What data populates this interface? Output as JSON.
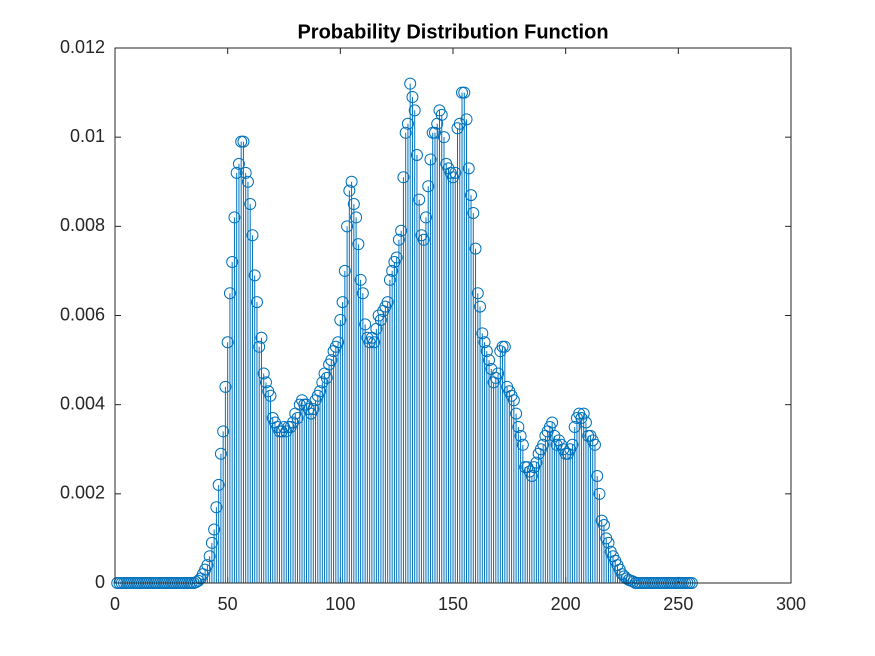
{
  "chart_data": {
    "type": "stem",
    "title": "Probability Distribution Function",
    "x": [
      1,
      2,
      3,
      4,
      5,
      6,
      7,
      8,
      9,
      10,
      11,
      12,
      13,
      14,
      15,
      16,
      17,
      18,
      19,
      20,
      21,
      22,
      23,
      24,
      25,
      26,
      27,
      28,
      29,
      30,
      31,
      32,
      33,
      34,
      35,
      36,
      37,
      38,
      39,
      40,
      41,
      42,
      43,
      44,
      45,
      46,
      47,
      48,
      49,
      50,
      51,
      52,
      53,
      54,
      55,
      56,
      57,
      58,
      59,
      60,
      61,
      62,
      63,
      64,
      65,
      66,
      67,
      68,
      69,
      70,
      71,
      72,
      73,
      74,
      75,
      76,
      77,
      78,
      79,
      80,
      81,
      82,
      83,
      84,
      85,
      86,
      87,
      88,
      89,
      90,
      91,
      92,
      93,
      94,
      95,
      96,
      97,
      98,
      99,
      100,
      101,
      102,
      103,
      104,
      105,
      106,
      107,
      108,
      109,
      110,
      111,
      112,
      113,
      114,
      115,
      116,
      117,
      118,
      119,
      120,
      121,
      122,
      123,
      124,
      125,
      126,
      127,
      128,
      129,
      130,
      131,
      132,
      133,
      134,
      135,
      136,
      137,
      138,
      139,
      140,
      141,
      142,
      143,
      144,
      145,
      146,
      147,
      148,
      149,
      150,
      151,
      152,
      153,
      154,
      155,
      156,
      157,
      158,
      159,
      160,
      161,
      162,
      163,
      164,
      165,
      166,
      167,
      168,
      169,
      170,
      171,
      172,
      173,
      174,
      175,
      176,
      177,
      178,
      179,
      180,
      181,
      182,
      183,
      184,
      185,
      186,
      187,
      188,
      189,
      190,
      191,
      192,
      193,
      194,
      195,
      196,
      197,
      198,
      199,
      200,
      201,
      202,
      203,
      204,
      205,
      206,
      207,
      208,
      209,
      210,
      211,
      212,
      213,
      214,
      215,
      216,
      217,
      218,
      219,
      220,
      221,
      222,
      223,
      224,
      225,
      226,
      227,
      228,
      229,
      230,
      231,
      232,
      233,
      234,
      235,
      236,
      237,
      238,
      239,
      240,
      241,
      242,
      243,
      244,
      245,
      246,
      247,
      248,
      249,
      250,
      251,
      252,
      253,
      254,
      255,
      256
    ],
    "values": [
      0,
      0,
      0,
      0,
      0,
      0,
      0,
      0,
      0,
      0,
      0,
      0,
      0,
      0,
      0,
      0,
      0,
      0,
      0,
      0,
      0,
      0,
      0,
      0,
      0,
      0,
      0,
      0,
      0,
      0,
      0,
      0,
      0,
      0,
      0,
      2e-05,
      5e-05,
      0.0001,
      0.0002,
      0.0003,
      0.0004,
      0.0006,
      0.0009,
      0.0012,
      0.0017,
      0.0022,
      0.0029,
      0.0034,
      0.0044,
      0.0054,
      0.0065,
      0.0072,
      0.0082,
      0.0092,
      0.0094,
      0.0099,
      0.0099,
      0.0092,
      0.009,
      0.0085,
      0.0078,
      0.0069,
      0.0063,
      0.0053,
      0.0055,
      0.0047,
      0.0045,
      0.0043,
      0.0042,
      0.0037,
      0.0036,
      0.0035,
      0.0034,
      0.0034,
      0.0035,
      0.0034,
      0.0035,
      0.0035,
      0.0036,
      0.0038,
      0.0037,
      0.004,
      0.0041,
      0.004,
      0.004,
      0.0039,
      0.0038,
      0.0039,
      0.0041,
      0.0042,
      0.0043,
      0.0045,
      0.0047,
      0.0046,
      0.0049,
      0.005,
      0.0052,
      0.0053,
      0.0054,
      0.0059,
      0.0063,
      0.007,
      0.008,
      0.0088,
      0.009,
      0.0085,
      0.0082,
      0.0076,
      0.0068,
      0.0065,
      0.0058,
      0.0055,
      0.0054,
      0.0055,
      0.0054,
      0.0057,
      0.006,
      0.0059,
      0.0061,
      0.0062,
      0.0063,
      0.0068,
      0.007,
      0.0072,
      0.0073,
      0.0077,
      0.0079,
      0.0091,
      0.0101,
      0.0103,
      0.0112,
      0.0109,
      0.0106,
      0.0096,
      0.0086,
      0.0078,
      0.0077,
      0.0082,
      0.0089,
      0.0095,
      0.0101,
      0.0101,
      0.0103,
      0.0106,
      0.0105,
      0.01,
      0.0094,
      0.0093,
      0.0092,
      0.0091,
      0.0092,
      0.0102,
      0.0103,
      0.011,
      0.011,
      0.0104,
      0.0093,
      0.0087,
      0.0083,
      0.0075,
      0.0065,
      0.0062,
      0.0056,
      0.0054,
      0.0052,
      0.005,
      0.0048,
      0.0045,
      0.0046,
      0.0047,
      0.0052,
      0.0053,
      0.0053,
      0.0044,
      0.0043,
      0.0042,
      0.0041,
      0.0038,
      0.0035,
      0.0033,
      0.0031,
      0.0026,
      0.0026,
      0.0025,
      0.0024,
      0.0026,
      0.0027,
      0.0029,
      0.003,
      0.0031,
      0.0033,
      0.0034,
      0.0035,
      0.0036,
      0.0033,
      0.0031,
      0.0032,
      0.0031,
      0.003,
      0.0029,
      0.0029,
      0.003,
      0.0031,
      0.0035,
      0.0037,
      0.0038,
      0.0037,
      0.0038,
      0.0036,
      0.0033,
      0.0033,
      0.0032,
      0.0031,
      0.0024,
      0.002,
      0.0014,
      0.0013,
      0.001,
      0.0009,
      0.0007,
      0.0006,
      0.0005,
      0.0004,
      0.0003,
      0.0002,
      0.00015,
      0.0001,
      7e-05,
      5e-05,
      3e-05,
      0,
      0,
      0,
      0,
      0,
      0,
      0,
      0,
      0,
      0,
      0,
      0,
      0,
      0,
      0,
      0,
      0,
      0,
      0,
      0,
      0,
      0,
      0,
      0,
      0,
      0
    ],
    "color": "#0072bd",
    "xlim": [
      0,
      300
    ],
    "xticks": [
      0,
      50,
      100,
      150,
      200,
      250,
      300
    ],
    "ylim": [
      0,
      0.012
    ],
    "yticks": [
      0,
      0.002,
      0.004,
      0.006,
      0.008,
      0.01,
      0.012
    ]
  }
}
